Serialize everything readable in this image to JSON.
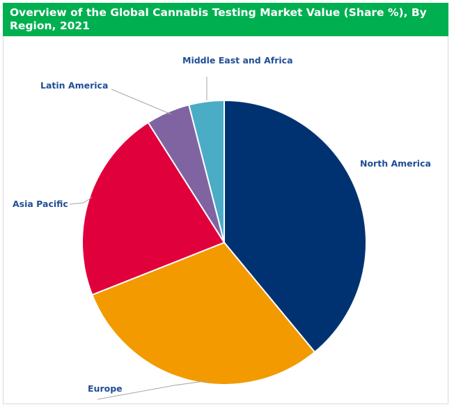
{
  "chart_data": {
    "type": "pie",
    "title": "Overview of the Global Cannabis Testing Market Value (Share %), By Region, 2021",
    "categories": [
      "North America",
      "Europe",
      "Asia Pacific",
      "Latin America",
      "Middle East and Africa"
    ],
    "values": [
      39,
      30,
      22,
      5,
      4
    ],
    "unit": "%",
    "colors": [
      "#003271",
      "#f29a00",
      "#e0003c",
      "#8064a2",
      "#4bacc6"
    ],
    "legend": "none",
    "title_bar_color": "#00b050"
  }
}
